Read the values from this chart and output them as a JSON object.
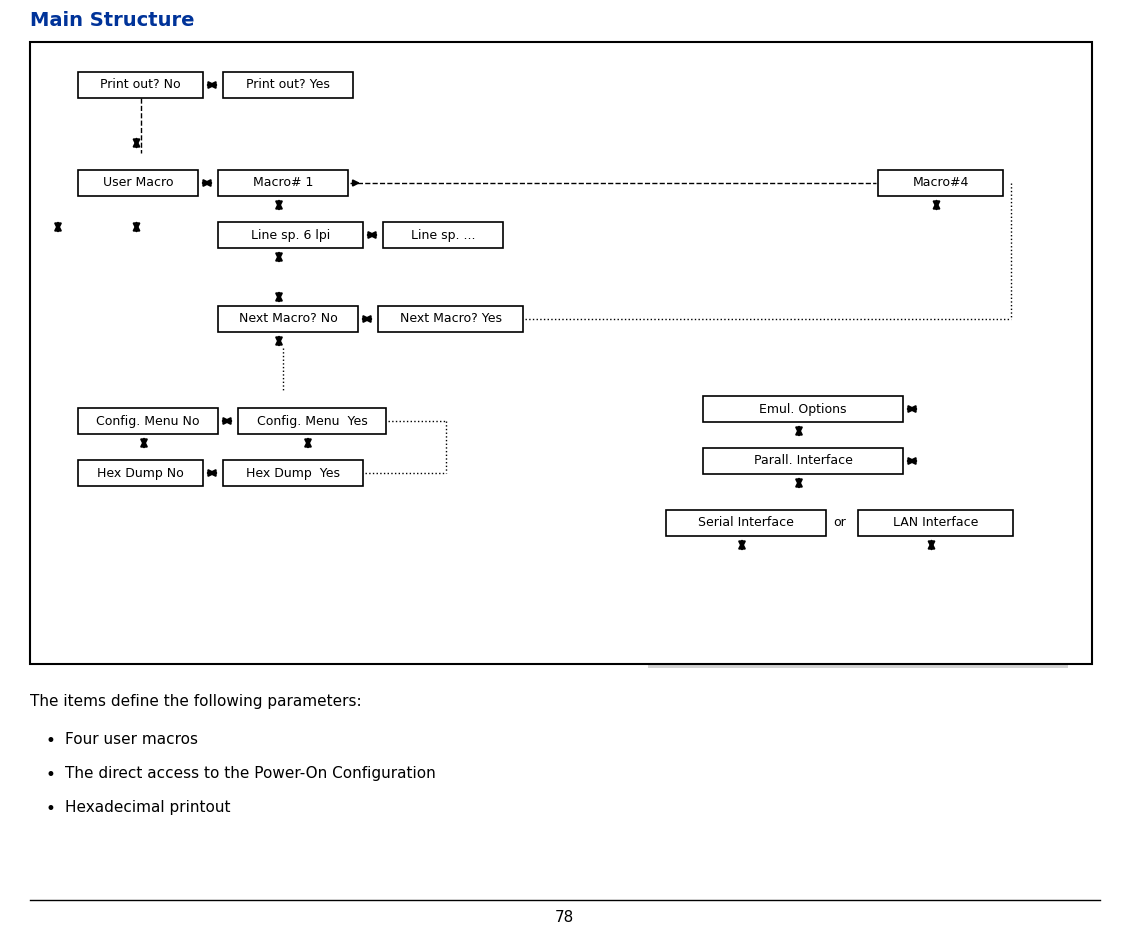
{
  "title": "Main Structure",
  "title_color": "#003399",
  "bg_color": "#ffffff",
  "gray_bg": "#d3d3d3",
  "page_number": "78",
  "intro_text": "The items define the following parameters:",
  "bullets": [
    "Four user macros",
    "The direct access to the Power-On Configuration",
    "Hexadecimal printout"
  ]
}
